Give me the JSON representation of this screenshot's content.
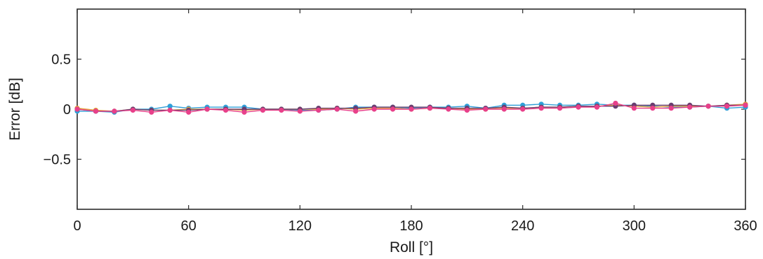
{
  "chart_data": {
    "type": "line",
    "title": "",
    "xlabel": "Roll [°]",
    "ylabel": "Error [dB]",
    "xlim": [
      0,
      360
    ],
    "ylim": [
      -1,
      1
    ],
    "xticks": [
      0,
      60,
      120,
      180,
      240,
      300,
      360
    ],
    "xtick_labels": [
      "0",
      "60",
      "120",
      "180",
      "240",
      "300",
      "360"
    ],
    "yticks": [
      0.5,
      0,
      -0.5
    ],
    "ytick_labels": [
      "0.5",
      "0",
      "−0.5"
    ],
    "grid": false,
    "legend": "none",
    "x": [
      0,
      10,
      20,
      30,
      40,
      50,
      60,
      70,
      80,
      90,
      100,
      110,
      120,
      130,
      140,
      150,
      160,
      170,
      180,
      190,
      200,
      210,
      220,
      230,
      240,
      250,
      260,
      270,
      280,
      290,
      300,
      310,
      320,
      330,
      340,
      350,
      360
    ],
    "series": [
      {
        "color": "#2f9fd8",
        "values": [
          -0.02,
          -0.02,
          -0.03,
          0.0,
          0.0,
          0.03,
          0.01,
          0.02,
          0.02,
          0.02,
          0.0,
          0.0,
          -0.01,
          -0.01,
          0.0,
          0.02,
          0.02,
          0.02,
          0.01,
          0.02,
          0.02,
          0.03,
          0.01,
          0.04,
          0.04,
          0.05,
          0.04,
          0.04,
          0.05,
          0.04,
          0.04,
          0.03,
          0.02,
          0.02,
          0.03,
          0.01,
          0.02
        ]
      },
      {
        "color": "#e8a13a",
        "values": [
          0.01,
          -0.01,
          -0.02,
          0.0,
          -0.01,
          -0.01,
          0.0,
          0.0,
          0.0,
          -0.01,
          0.0,
          0.0,
          0.0,
          0.0,
          0.01,
          0.0,
          0.01,
          0.01,
          0.0,
          0.01,
          0.01,
          0.0,
          0.0,
          0.01,
          0.01,
          0.02,
          0.02,
          0.03,
          0.03,
          0.04,
          0.03,
          0.02,
          0.03,
          0.03,
          0.03,
          0.04,
          0.05
        ]
      },
      {
        "color": "#6a3d6e",
        "values": [
          0.0,
          -0.02,
          -0.02,
          0.0,
          -0.01,
          -0.01,
          -0.01,
          0.0,
          0.0,
          0.0,
          0.0,
          0.0,
          0.0,
          0.01,
          0.01,
          0.01,
          0.02,
          0.02,
          0.02,
          0.02,
          0.01,
          0.01,
          0.01,
          0.02,
          0.01,
          0.02,
          0.02,
          0.03,
          0.03,
          0.03,
          0.04,
          0.04,
          0.04,
          0.04,
          0.03,
          0.04,
          0.04
        ]
      },
      {
        "color": "#e8408a",
        "values": [
          0.0,
          -0.02,
          -0.02,
          -0.01,
          -0.03,
          -0.01,
          -0.03,
          0.0,
          -0.01,
          -0.03,
          -0.01,
          -0.01,
          -0.02,
          -0.01,
          0.0,
          -0.02,
          0.0,
          0.0,
          0.0,
          0.01,
          0.0,
          -0.01,
          0.0,
          0.0,
          0.0,
          0.01,
          0.01,
          0.02,
          0.02,
          0.06,
          0.01,
          0.01,
          0.01,
          0.02,
          0.03,
          0.03,
          0.04
        ]
      }
    ]
  }
}
